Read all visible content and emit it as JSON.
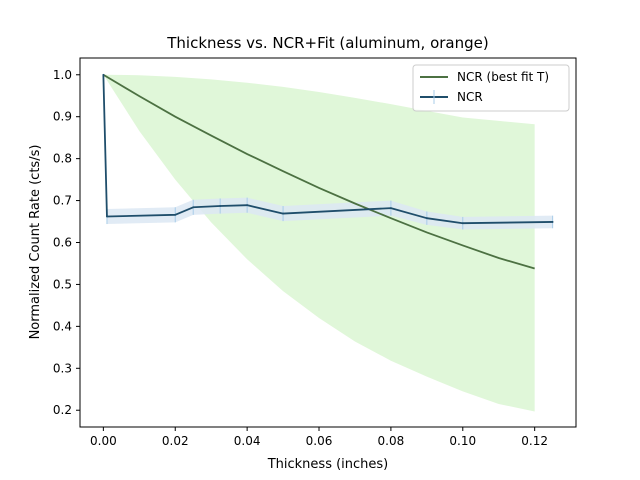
{
  "chart_data": {
    "type": "line",
    "title": "Thickness vs. NCR+Fit (aluminum, orange)",
    "xlabel": "Thickness (inches)",
    "ylabel": "Normalized Count Rate (cts/s)",
    "xlim": [
      -0.0065,
      0.1315
    ],
    "ylim": [
      0.16,
      1.04
    ],
    "xticks": [
      0.0,
      0.02,
      0.04,
      0.06,
      0.08,
      0.1,
      0.12
    ],
    "xtick_labels": [
      "0.00",
      "0.02",
      "0.04",
      "0.06",
      "0.08",
      "0.10",
      "0.12"
    ],
    "yticks": [
      0.2,
      0.3,
      0.4,
      0.5,
      0.6,
      0.7,
      0.8,
      0.9,
      1.0
    ],
    "ytick_labels": [
      "0.2",
      "0.3",
      "0.4",
      "0.5",
      "0.6",
      "0.7",
      "0.8",
      "0.9",
      "1.0"
    ],
    "grid": false,
    "legend_position": "top-right",
    "series": [
      {
        "name": "NCR (best fit T)",
        "color": "#4c7142",
        "band_color": "#e0f7d9",
        "x": [
          0.0,
          0.01,
          0.02,
          0.03,
          0.04,
          0.05,
          0.06,
          0.07,
          0.08,
          0.09,
          0.1,
          0.11,
          0.12
        ],
        "y": [
          1.0,
          0.949,
          0.9,
          0.855,
          0.811,
          0.77,
          0.73,
          0.693,
          0.658,
          0.624,
          0.593,
          0.563,
          0.538
        ],
        "band_upper": [
          1.0,
          0.999,
          0.995,
          0.989,
          0.981,
          0.971,
          0.959,
          0.945,
          0.93,
          0.914,
          0.898,
          0.89,
          0.882
        ],
        "band_lower": [
          1.0,
          0.866,
          0.75,
          0.648,
          0.56,
          0.484,
          0.42,
          0.364,
          0.318,
          0.28,
          0.245,
          0.215,
          0.197
        ]
      },
      {
        "name": "NCR",
        "color": "#1f4e6b",
        "errorbar_color": "#a8cce8",
        "band_color": "#dce8f3",
        "x": [
          0.0,
          0.001,
          0.02,
          0.025,
          0.0325,
          0.04,
          0.05,
          0.08,
          0.09,
          0.1,
          0.125
        ],
        "y": [
          1.0,
          0.662,
          0.666,
          0.684,
          0.687,
          0.689,
          0.669,
          0.682,
          0.658,
          0.646,
          0.649
        ],
        "yerr": [
          0.0,
          0.018,
          0.018,
          0.018,
          0.018,
          0.018,
          0.018,
          0.018,
          0.016,
          0.015,
          0.015
        ]
      }
    ]
  }
}
